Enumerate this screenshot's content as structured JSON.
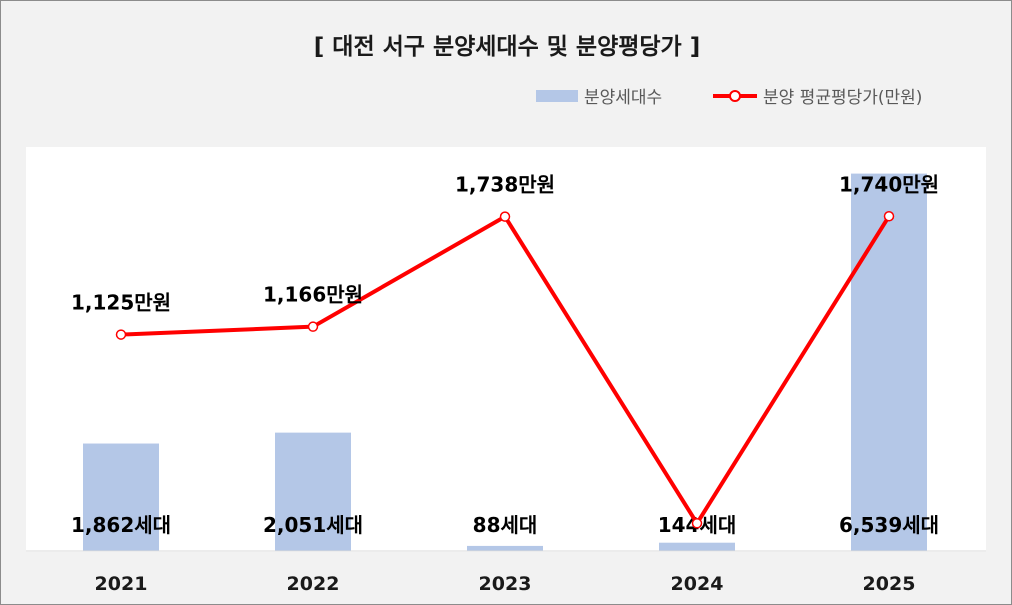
{
  "title": "[ 대전 서구 분양세대수 및 분양평당가 ]",
  "legend": {
    "bar_label": "분양세대수",
    "line_label": "분양 평균평당가(만원)"
  },
  "colors": {
    "bar": "#b4c7e7",
    "line": "#ff0000",
    "text": "#000000",
    "background": "#f2f2f2",
    "plot": "#ffffff"
  },
  "chart_data": {
    "type": "bar",
    "categories": [
      "2021",
      "2022",
      "2023",
      "2024",
      "2025"
    ],
    "series": [
      {
        "name": "분양세대수",
        "type": "bar",
        "values": [
          1862,
          2051,
          88,
          144,
          6539
        ],
        "labels": [
          "1,862세대",
          "2,051세대",
          "88세대",
          "144세대",
          "6,539세대"
        ]
      },
      {
        "name": "분양 평균평당가(만원)",
        "type": "line",
        "values": [
          1125,
          1166,
          1738,
          144,
          1740
        ],
        "labels": [
          "1,125만원",
          "1,166만원",
          "1,738만원",
          "",
          "1,740만원"
        ]
      }
    ],
    "bar_ylim": [
      0,
      7000
    ],
    "line_ylim": [
      0,
      2100
    ],
    "grid": false,
    "legend_position": "top-right"
  }
}
